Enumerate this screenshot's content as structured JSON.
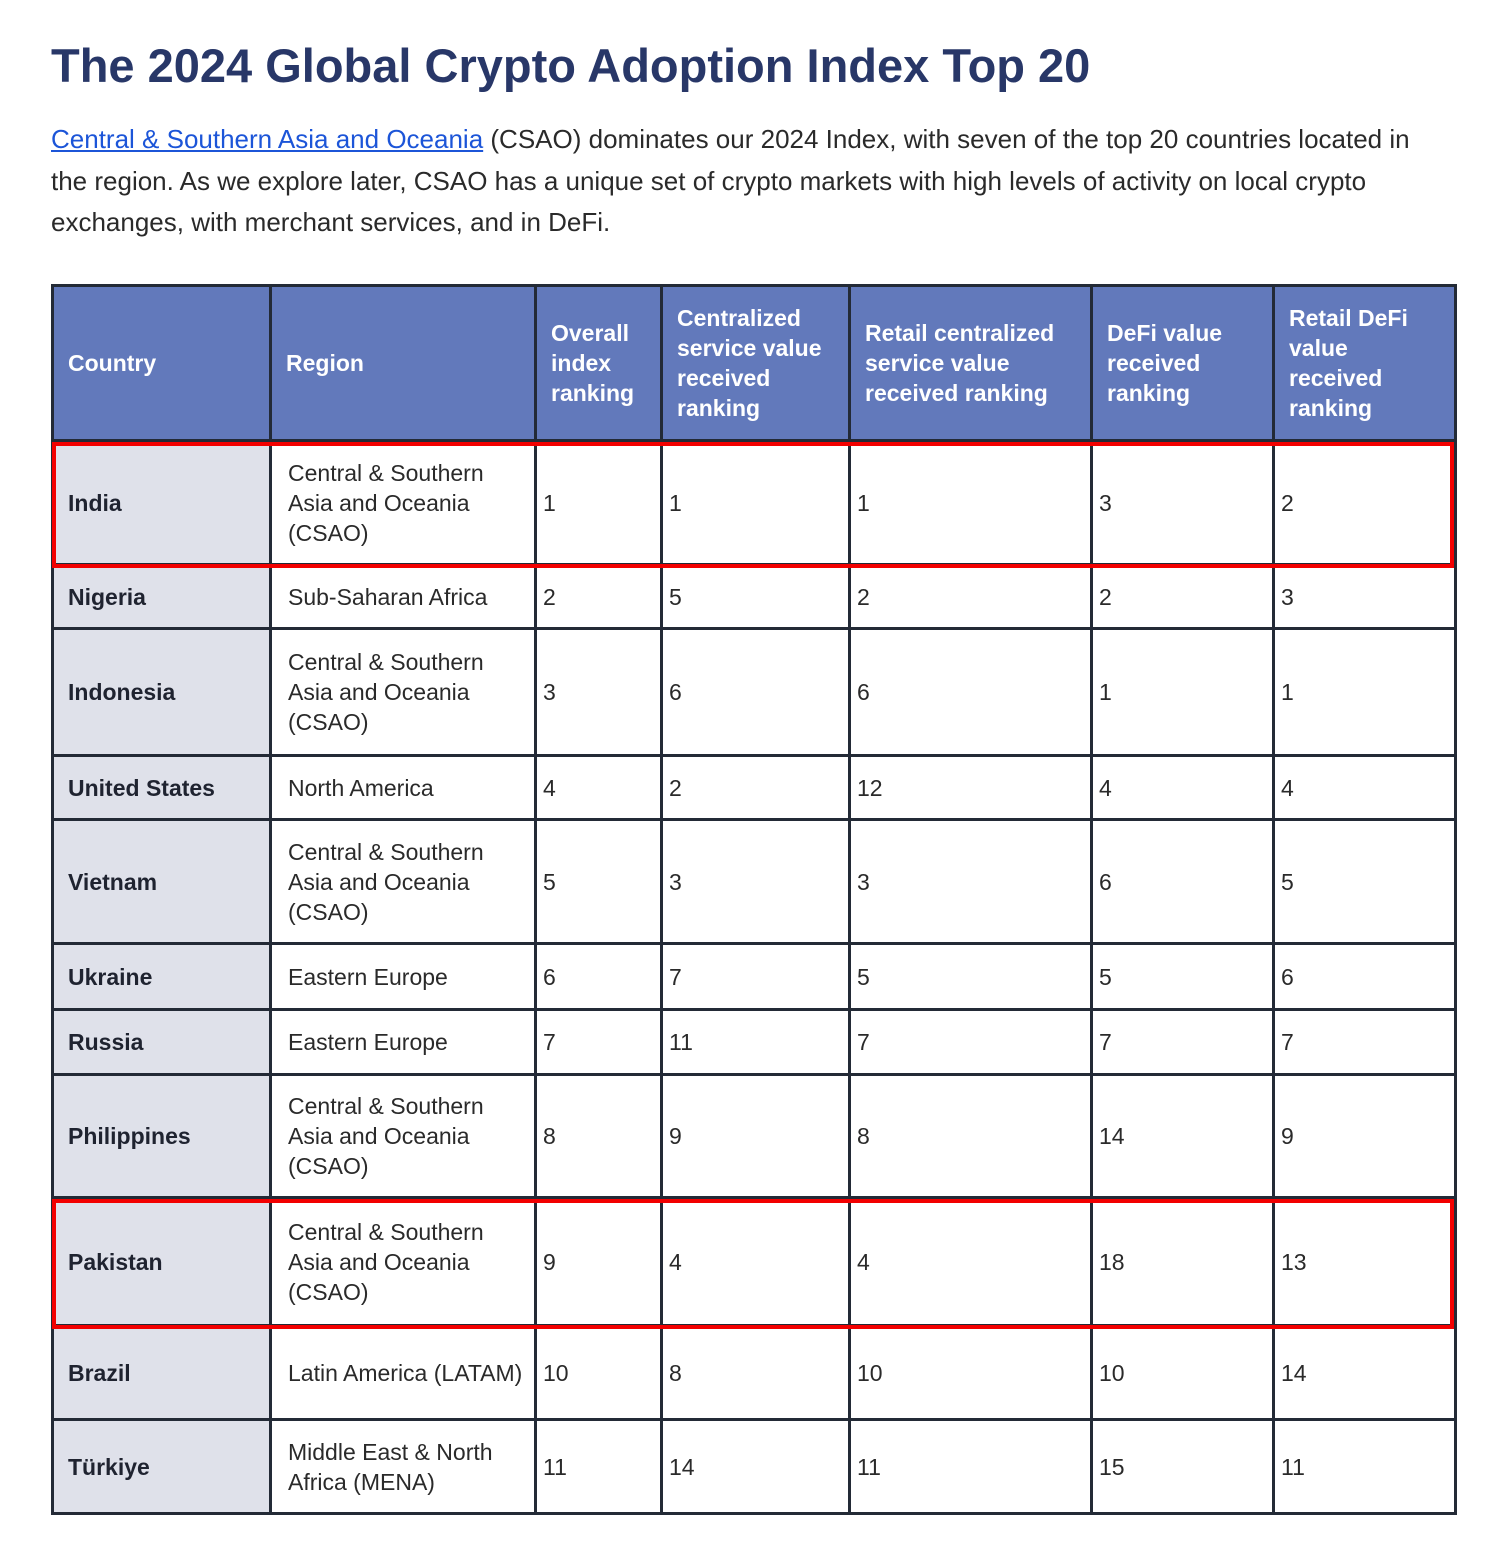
{
  "title": "The 2024 Global Crypto Adoption Index Top 20",
  "intro": {
    "link": "Central & Southern Asia and Oceania",
    "text": " (CSAO) dominates our 2024 Index, with seven of the top 20 countries located in the region. As we explore later, CSAO has a unique set of crypto markets with high levels of activity on local crypto exchanges, with merchant services, and in DeFi."
  },
  "table": {
    "headers": [
      "Country",
      "Region",
      "Overall index ranking",
      "Centralized service value received ranking",
      "Retail centralized service value received ranking",
      "DeFi value received ranking",
      "Retail DeFi value received ranking"
    ],
    "rows": [
      [
        "India",
        "Central & Southern Asia and Oceania (CSAO)",
        "1",
        "1",
        "1",
        "3",
        "2"
      ],
      [
        "Nigeria",
        "Sub-Saharan Africa",
        "2",
        "5",
        "2",
        "2",
        "3"
      ],
      [
        "Indonesia",
        "Central & Southern Asia and Oceania (CSAO)",
        "3",
        "6",
        "6",
        "1",
        "1"
      ],
      [
        "United States",
        "North America",
        "4",
        "2",
        "12",
        "4",
        "4"
      ],
      [
        "Vietnam",
        "Central & Southern Asia and Oceania (CSAO)",
        "5",
        "3",
        "3",
        "6",
        "5"
      ],
      [
        "Ukraine",
        "Eastern Europe",
        "6",
        "7",
        "5",
        "5",
        "6"
      ],
      [
        "Russia",
        "Eastern Europe",
        "7",
        "11",
        "7",
        "7",
        "7"
      ],
      [
        "Philippines",
        "Central & Southern Asia and Oceania (CSAO)",
        "8",
        "9",
        "8",
        "14",
        "9"
      ],
      [
        "Pakistan",
        "Central & Southern Asia and Oceania (CSAO)",
        "9",
        "4",
        "4",
        "18",
        "13"
      ],
      [
        "Brazil",
        "Latin America (LATAM)",
        "10",
        "8",
        "10",
        "10",
        "14"
      ],
      [
        "Türkiye",
        "Middle East & North Africa (MENA)",
        "11",
        "14",
        "11",
        "15",
        "11"
      ]
    ],
    "highlighted": [
      "India",
      "Pakistan"
    ],
    "highlight_color": "#f20000"
  }
}
